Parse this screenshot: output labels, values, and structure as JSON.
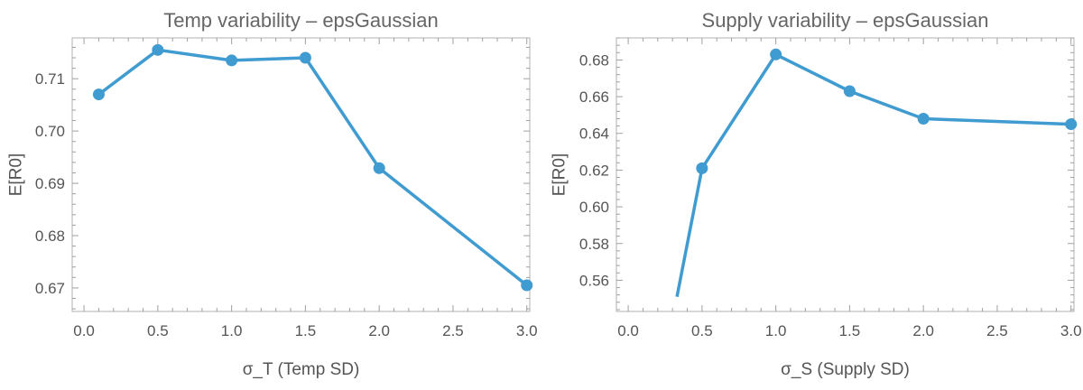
{
  "chart_data": [
    {
      "type": "line",
      "title": "Temp variability – epsGaussian",
      "xlabel": "σ_T (Temp SD)",
      "ylabel": "E[R0]",
      "xlim": [
        -0.08,
        3.02
      ],
      "ylim": [
        0.6655,
        0.7178
      ],
      "xticks": [
        0.0,
        0.5,
        1.0,
        1.5,
        2.0,
        2.5,
        3.0
      ],
      "xtick_labels": [
        "0.0",
        "0.5",
        "1.0",
        "1.5",
        "2.0",
        "2.5",
        "3.0"
      ],
      "yticks": [
        0.67,
        0.68,
        0.69,
        0.7,
        0.71
      ],
      "ytick_labels": [
        "0.67",
        "0.68",
        "0.69",
        "0.70",
        "0.71"
      ],
      "series": [
        {
          "color": "#3f9bd0",
          "x": [
            0.1,
            0.5,
            1.0,
            1.5,
            2.0,
            3.0
          ],
          "y": [
            0.707,
            0.7155,
            0.7135,
            0.714,
            0.6929,
            0.6705
          ],
          "markers": true
        }
      ],
      "grid": false
    },
    {
      "type": "line",
      "title": "Supply variability – epsGaussian",
      "xlabel": "σ_S (Supply SD)",
      "ylabel": "E[R0]",
      "xlim": [
        -0.08,
        3.02
      ],
      "ylim": [
        0.543,
        0.692
      ],
      "xticks": [
        0.0,
        0.5,
        1.0,
        1.5,
        2.0,
        2.5,
        3.0
      ],
      "xtick_labels": [
        "0.0",
        "0.5",
        "1.0",
        "1.5",
        "2.0",
        "2.5",
        "3.0"
      ],
      "yticks": [
        0.56,
        0.58,
        0.6,
        0.62,
        0.64,
        0.66,
        0.68
      ],
      "ytick_labels": [
        "0.56",
        "0.58",
        "0.60",
        "0.62",
        "0.64",
        "0.66",
        "0.68"
      ],
      "series": [
        {
          "color": "#3f9bd0",
          "x": [
            0.33,
            0.5,
            1.0,
            1.5,
            2.0,
            3.0
          ],
          "y": [
            0.551,
            0.621,
            0.683,
            0.663,
            0.648,
            0.645
          ],
          "marker_points": [
            false,
            true,
            true,
            true,
            true,
            true
          ]
        }
      ],
      "grid": false
    }
  ]
}
